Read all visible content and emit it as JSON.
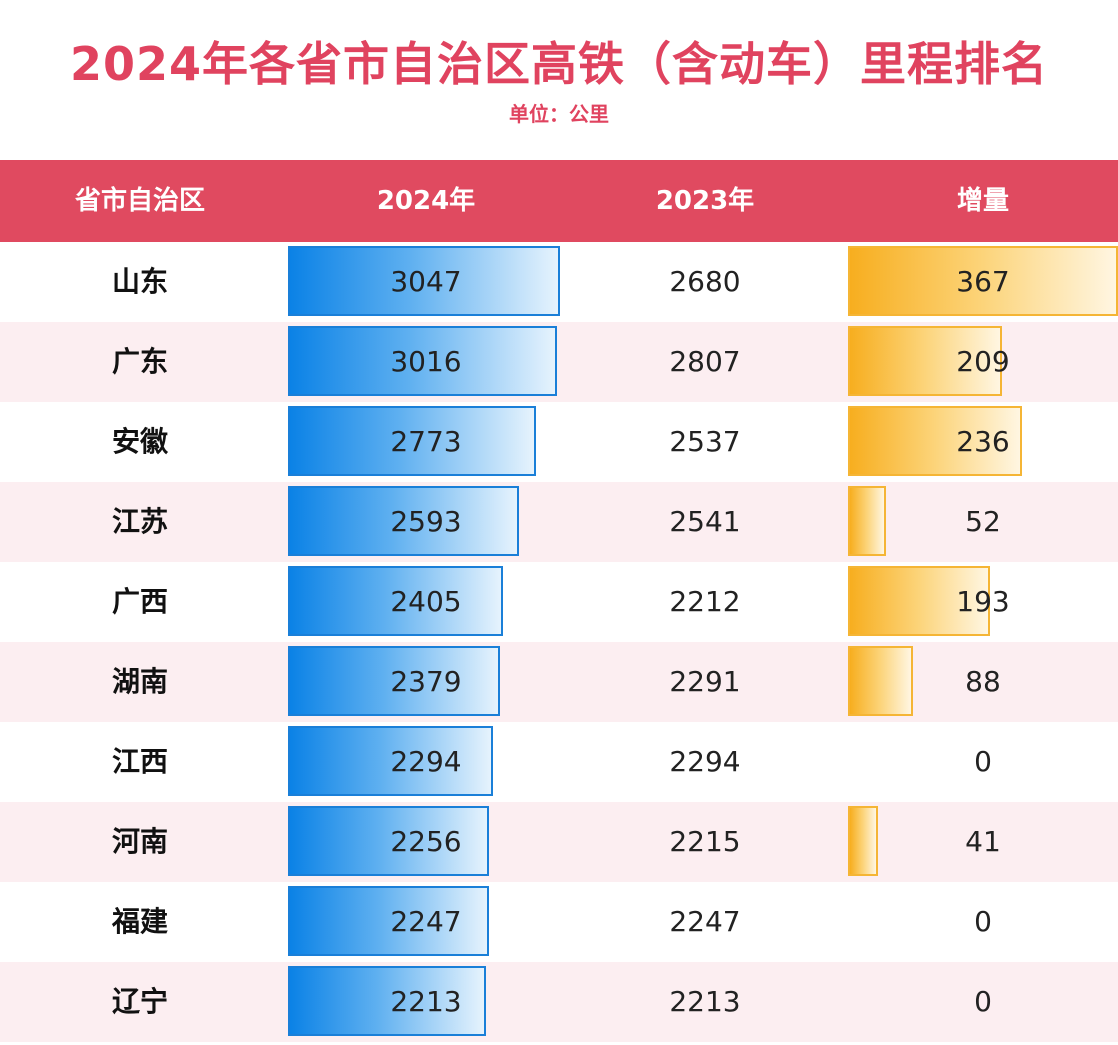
{
  "title": "2024年各省市自治区高铁（含动车）里程排名",
  "subtitle": "单位：公里",
  "columns": [
    "省市自治区",
    "2024年",
    "2023年",
    "增量"
  ],
  "colors": {
    "title": "#e0435f",
    "header_bg": "#e04a60",
    "row_alt_bg": "#fceef1",
    "bar_2024": "#0b82e6",
    "bar_increase": "#f7ae1f"
  },
  "chart_data": {
    "type": "table",
    "title": "2024年各省市自治区高铁（含动车）里程排名",
    "subtitle": "单位：公里",
    "columns": [
      "省市自治区",
      "2024年",
      "2023年",
      "增量"
    ],
    "rows": [
      {
        "province": "山东",
        "y2024": 3047,
        "y2023": 2680,
        "increase": 367
      },
      {
        "province": "广东",
        "y2024": 3016,
        "y2023": 2807,
        "increase": 209
      },
      {
        "province": "安徽",
        "y2024": 2773,
        "y2023": 2537,
        "increase": 236
      },
      {
        "province": "江苏",
        "y2024": 2593,
        "y2023": 2541,
        "increase": 52
      },
      {
        "province": "广西",
        "y2024": 2405,
        "y2023": 2212,
        "increase": 193
      },
      {
        "province": "湖南",
        "y2024": 2379,
        "y2023": 2291,
        "increase": 88
      },
      {
        "province": "江西",
        "y2024": 2294,
        "y2023": 2294,
        "increase": 0
      },
      {
        "province": "河南",
        "y2024": 2256,
        "y2023": 2215,
        "increase": 41
      },
      {
        "province": "福建",
        "y2024": 2247,
        "y2023": 2247,
        "increase": 0
      },
      {
        "province": "辽宁",
        "y2024": 2213,
        "y2023": 2213,
        "increase": 0
      }
    ]
  }
}
